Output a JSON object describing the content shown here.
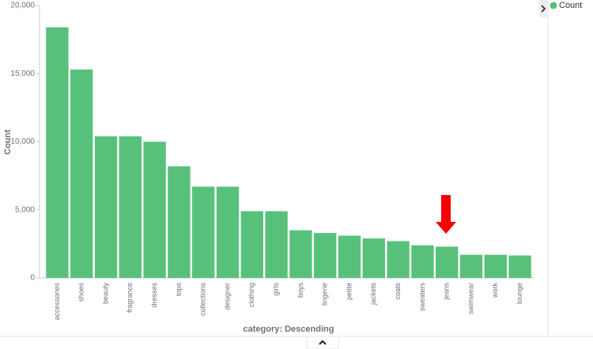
{
  "chart_data": {
    "type": "bar",
    "ylabel": "Count",
    "xlabel": "category: Descending",
    "categories": [
      "accessories",
      "shoes",
      "beauty",
      "fragrance",
      "dresses",
      "tops",
      "collections",
      "designer",
      "clothing",
      "girls",
      "boys",
      "lingerie",
      "petite",
      "jackets",
      "coats",
      "sweaters",
      "jeans",
      "swimwear",
      "work",
      "lounge"
    ],
    "series": [
      {
        "name": "Count",
        "color": "#57c17b",
        "values": [
          18400,
          15300,
          10400,
          10400,
          10000,
          8200,
          6700,
          6700,
          4900,
          4900,
          3500,
          3300,
          3100,
          2900,
          2700,
          2400,
          2300,
          1700,
          1700,
          1650
        ]
      }
    ],
    "ylim": [
      0,
      20000
    ],
    "yticks": [
      0,
      {
        "value": 5000,
        "label": "5,000"
      },
      {
        "value": 10000,
        "label": "10,000"
      },
      {
        "value": 15000,
        "label": "15,000"
      },
      {
        "value": 20000,
        "label": "20,000"
      }
    ],
    "grid": false,
    "legend": "top-right"
  }
}
